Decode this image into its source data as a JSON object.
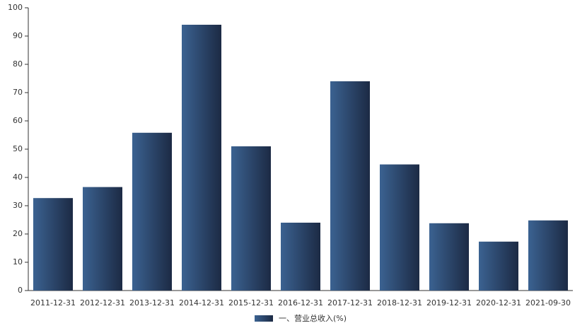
{
  "chart_data": {
    "type": "bar",
    "categories": [
      "2011-12-31",
      "2012-12-31",
      "2013-12-31",
      "2014-12-31",
      "2015-12-31",
      "2016-12-31",
      "2017-12-31",
      "2018-12-31",
      "2019-12-31",
      "2020-12-31",
      "2021-09-30"
    ],
    "series": [
      {
        "name": "一、营业总收入(%)",
        "color": "#3b6291",
        "values": [
          32.7,
          36.6,
          55.8,
          94.0,
          51.0,
          24.0,
          74.0,
          44.6,
          23.8,
          17.3,
          24.8
        ]
      }
    ],
    "ylim": [
      0,
      100
    ],
    "yticks": [
      0,
      10,
      20,
      30,
      40,
      50,
      60,
      70,
      80,
      90,
      100
    ]
  }
}
